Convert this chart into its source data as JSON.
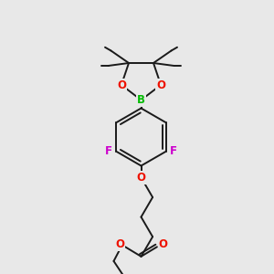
{
  "bg_color": "#e8e8e8",
  "bond_color": "#1a1a1a",
  "bond_width": 1.4,
  "atom_colors": {
    "B": "#00bb00",
    "O": "#ee1100",
    "F": "#cc00cc",
    "C": "#1a1a1a"
  },
  "font_size_atom": 8.5,
  "font_size_methyl": 7.5,
  "figsize": [
    3.0,
    3.0
  ],
  "dpi": 100,
  "xlim": [
    0,
    10
  ],
  "ylim": [
    0,
    10
  ]
}
